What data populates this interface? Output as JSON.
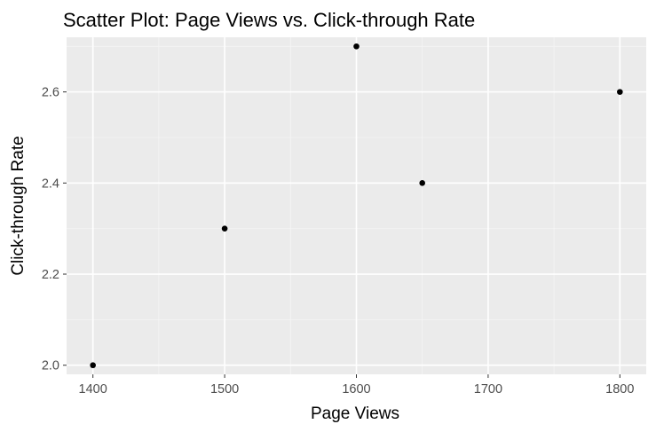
{
  "chart_data": {
    "type": "scatter",
    "title": "Scatter Plot: Page Views vs. Click-through Rate",
    "xlabel": "Page Views",
    "ylabel": "Click-through Rate",
    "x": [
      1400,
      1500,
      1600,
      1650,
      1800
    ],
    "y": [
      2.0,
      2.3,
      2.7,
      2.4,
      2.6
    ],
    "xlim": [
      1380,
      1820
    ],
    "ylim": [
      1.98,
      2.72
    ],
    "x_ticks": [
      1400,
      1500,
      1600,
      1700,
      1800
    ],
    "x_tick_labels": [
      "1400",
      "1500",
      "1600",
      "1700",
      "1800"
    ],
    "y_ticks": [
      2.0,
      2.2,
      2.4,
      2.6
    ],
    "y_tick_labels": [
      "2.0",
      "2.2",
      "2.4",
      "2.6"
    ],
    "x_minor_ticks": [
      1450,
      1550,
      1650,
      1750
    ],
    "y_minor_ticks": [
      2.1,
      2.3,
      2.5,
      2.7
    ],
    "grid": true,
    "legend": "none",
    "colors": {
      "panel_background": "#EBEBEB",
      "grid_major": "#FFFFFF",
      "grid_minor": "#F5F5F5",
      "point": "#000000",
      "tick": "#333333"
    }
  }
}
